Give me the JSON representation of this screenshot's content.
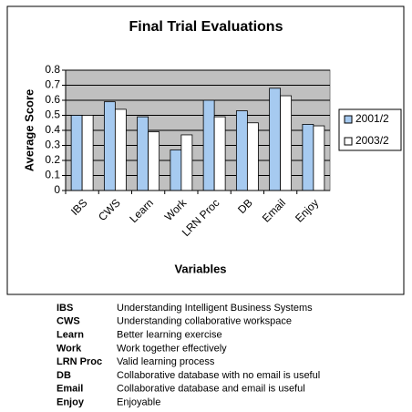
{
  "chart_data": {
    "type": "bar",
    "title": "Final Trial Evaluations",
    "x_label": "Variables",
    "y_label": "Average Score",
    "categories": [
      "IBS",
      "CWS",
      "Learn",
      "Work",
      "LRN Proc",
      "DB",
      "Email",
      "Enjoy"
    ],
    "series": [
      {
        "name": "2001/2",
        "color": "#a6caf0",
        "values": [
          0.5,
          0.59,
          0.49,
          0.27,
          0.6,
          0.53,
          0.68,
          0.44
        ]
      },
      {
        "name": "2003/2",
        "color": "#ffffff",
        "values": [
          0.5,
          0.54,
          0.39,
          0.37,
          0.49,
          0.45,
          0.63,
          0.43
        ]
      }
    ],
    "ylim": [
      0,
      0.8
    ],
    "yticks": [
      0,
      0.1,
      0.2,
      0.3,
      0.4,
      0.5,
      0.6,
      0.7,
      0.8
    ],
    "grid": true,
    "legend": "right"
  },
  "glossary": [
    {
      "term": "IBS",
      "description": "Understanding Intelligent Business Systems"
    },
    {
      "term": "CWS",
      "description": "Understanding collaborative workspace"
    },
    {
      "term": "Learn",
      "description": "Better learning exercise"
    },
    {
      "term": "Work",
      "description": "Work together effectively"
    },
    {
      "term": "LRN Proc",
      "description": "Valid learning process"
    },
    {
      "term": "DB",
      "description": "Collaborative database with no email is useful"
    },
    {
      "term": "Email",
      "description": "Collaborative database and email is useful"
    },
    {
      "term": "Enjoy",
      "description": "Enjoyable"
    }
  ]
}
